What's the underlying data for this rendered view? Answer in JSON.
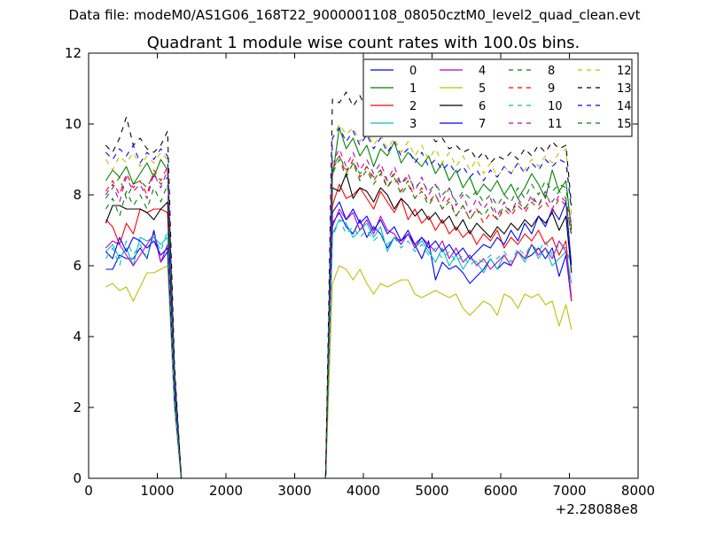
{
  "suptitle": "Data file: modeM0/AS1G06_168T22_9000001108_08050cztM0_level2_quad_clean.evt",
  "chart_data": {
    "type": "line",
    "title": "Quadrant 1 module wise count rates with 100.0s bins.",
    "xlabel": "",
    "ylabel": "",
    "x_offset_label": "+2.28088e8",
    "xlim": [
      0,
      8000
    ],
    "ylim": [
      0,
      12
    ],
    "xticks": [
      0,
      1000,
      2000,
      3000,
      4000,
      5000,
      6000,
      7000,
      8000
    ],
    "yticks": [
      0,
      2,
      4,
      6,
      8,
      10,
      12
    ],
    "grid": false,
    "legend_placement": "top-right",
    "legend_columns": 4,
    "x": [
      250,
      350,
      450,
      550,
      650,
      750,
      850,
      950,
      1050,
      1150,
      1250,
      1350,
      1450,
      1550,
      1650,
      1750,
      1850,
      1950,
      2050,
      2150,
      2250,
      2350,
      2450,
      2550,
      2650,
      2750,
      2850,
      2950,
      3050,
      3150,
      3250,
      3350,
      3450,
      3550,
      3650,
      3750,
      3850,
      3950,
      4050,
      4150,
      4250,
      4350,
      4450,
      4550,
      4650,
      4750,
      4850,
      4950,
      5050,
      5150,
      5250,
      5350,
      5450,
      5550,
      5650,
      5750,
      5850,
      5950,
      6050,
      6150,
      6250,
      6350,
      6450,
      6550,
      6650,
      6750,
      6850,
      6950,
      7030
    ],
    "series": [
      {
        "name": "0",
        "color": "#0000ff",
        "dash": "solid",
        "values": [
          5.9,
          5.9,
          6.3,
          6.2,
          6.2,
          6.5,
          6.2,
          7.0,
          6.1,
          6.4,
          2.0,
          0,
          0,
          0,
          0,
          0,
          0,
          0,
          0,
          0,
          0,
          0,
          0,
          0,
          0,
          0,
          0,
          0,
          0,
          0,
          0,
          0,
          0,
          7.2,
          7.5,
          7.1,
          6.9,
          7.3,
          6.8,
          7.1,
          6.9,
          6.5,
          6.8,
          6.7,
          6.9,
          6.6,
          6.2,
          6.7,
          5.6,
          6.1,
          5.9,
          6.0,
          5.8,
          5.5,
          5.7,
          5.9,
          6.2,
          5.9,
          6.1,
          6.0,
          6.4,
          6.2,
          6.3,
          6.5,
          6.2,
          6.5,
          5.7,
          6.3,
          5.0
        ]
      },
      {
        "name": "1",
        "color": "#008000",
        "dash": "solid",
        "values": [
          8.4,
          8.7,
          8.5,
          8.8,
          8.3,
          8.6,
          8.9,
          8.5,
          9.0,
          8.7,
          3.0,
          0,
          0,
          0,
          0,
          0,
          0,
          0,
          0,
          0,
          0,
          0,
          0,
          0,
          0,
          0,
          0,
          0,
          0,
          0,
          0,
          0,
          0,
          8.5,
          9.9,
          9.3,
          9.6,
          9.1,
          9.4,
          8.8,
          9.3,
          9.1,
          9.5,
          8.9,
          9.2,
          9.0,
          8.8,
          9.1,
          8.6,
          8.9,
          8.4,
          8.7,
          8.2,
          8.5,
          8.0,
          8.3,
          8.1,
          8.4,
          8.0,
          8.3,
          7.9,
          8.2,
          8.6,
          8.3,
          7.9,
          8.7,
          8.1,
          8.4,
          7.0
        ]
      },
      {
        "name": "2",
        "color": "#ff0000",
        "dash": "solid",
        "values": [
          7.3,
          7.1,
          6.6,
          7.2,
          6.9,
          7.6,
          7.5,
          7.6,
          7.6,
          7.5,
          2.5,
          0,
          0,
          0,
          0,
          0,
          0,
          0,
          0,
          0,
          0,
          0,
          0,
          0,
          0,
          0,
          0,
          0,
          0,
          0,
          0,
          0,
          0,
          7.7,
          8.3,
          7.9,
          8.0,
          8.2,
          7.9,
          7.6,
          8.1,
          7.8,
          7.5,
          7.9,
          7.3,
          7.6,
          7.2,
          7.4,
          7.0,
          7.3,
          6.9,
          7.1,
          6.8,
          7.0,
          6.6,
          6.9,
          6.7,
          7.0,
          6.5,
          6.8,
          6.6,
          6.9,
          6.7,
          7.0,
          6.6,
          6.8,
          6.3,
          6.7,
          5.0
        ]
      },
      {
        "name": "3",
        "color": "#00bfbf",
        "dash": "solid",
        "values": [
          6.4,
          6.6,
          6.2,
          6.5,
          6.0,
          6.8,
          6.7,
          6.8,
          6.6,
          6.8,
          2.2,
          0,
          0,
          0,
          0,
          0,
          0,
          0,
          0,
          0,
          0,
          0,
          0,
          0,
          0,
          0,
          0,
          0,
          0,
          0,
          0,
          0,
          0,
          6.9,
          7.3,
          7.2,
          6.8,
          7.0,
          7.2,
          6.8,
          7.1,
          6.4,
          6.8,
          6.6,
          6.9,
          6.5,
          6.7,
          6.4,
          6.1,
          6.5,
          6.0,
          6.3,
          5.9,
          6.2,
          6.1,
          5.8,
          6.2,
          5.9,
          6.3,
          6.0,
          6.4,
          6.1,
          6.6,
          6.2,
          6.5,
          6.0,
          6.2,
          6.4,
          5.5
        ]
      },
      {
        "name": "4",
        "color": "#bf00bf",
        "dash": "solid",
        "values": [
          6.5,
          6.7,
          6.6,
          6.3,
          6.0,
          6.3,
          6.6,
          6.9,
          6.1,
          6.6,
          2.2,
          0,
          0,
          0,
          0,
          0,
          0,
          0,
          0,
          0,
          0,
          0,
          0,
          0,
          0,
          0,
          0,
          0,
          0,
          0,
          0,
          0,
          0,
          7.1,
          7.6,
          7.3,
          7.5,
          7.0,
          7.3,
          6.9,
          7.4,
          7.0,
          6.9,
          6.6,
          6.9,
          6.5,
          6.8,
          6.6,
          6.4,
          6.7,
          6.2,
          6.5,
          6.1,
          6.3,
          6.0,
          6.2,
          5.9,
          6.1,
          6.3,
          6.0,
          6.4,
          6.2,
          6.6,
          6.3,
          6.5,
          6.2,
          6.7,
          6.4,
          5.1
        ]
      },
      {
        "name": "5",
        "color": "#bfbf00",
        "dash": "solid",
        "values": [
          5.4,
          5.5,
          5.3,
          5.4,
          5.0,
          5.4,
          5.8,
          5.8,
          5.9,
          6.0,
          2.0,
          0,
          0,
          0,
          0,
          0,
          0,
          0,
          0,
          0,
          0,
          0,
          0,
          0,
          0,
          0,
          0,
          0,
          0,
          0,
          0,
          0,
          0,
          5.5,
          6.0,
          5.9,
          5.6,
          5.9,
          5.5,
          5.2,
          5.5,
          5.4,
          5.5,
          5.6,
          5.6,
          5.2,
          5.1,
          5.2,
          5.3,
          5.2,
          5.1,
          5.2,
          4.8,
          4.6,
          4.8,
          5.0,
          4.9,
          4.6,
          5.2,
          5.1,
          4.8,
          5.2,
          5.1,
          5.2,
          4.9,
          5.0,
          4.3,
          4.9,
          4.2
        ]
      },
      {
        "name": "6",
        "color": "#000000",
        "dash": "solid",
        "values": [
          7.2,
          7.7,
          7.7,
          7.6,
          7.6,
          7.6,
          7.5,
          7.3,
          7.6,
          7.8,
          2.6,
          0,
          0,
          0,
          0,
          0,
          0,
          0,
          0,
          0,
          0,
          0,
          0,
          0,
          0,
          0,
          0,
          0,
          0,
          0,
          0,
          0,
          0,
          8.2,
          8.1,
          8.6,
          7.9,
          8.2,
          8.1,
          7.8,
          8.2,
          8.0,
          7.6,
          7.9,
          7.7,
          7.4,
          7.6,
          7.3,
          7.5,
          7.2,
          7.4,
          7.0,
          7.3,
          6.9,
          7.2,
          7.0,
          6.8,
          7.1,
          6.9,
          7.2,
          7.0,
          7.3,
          7.1,
          7.4,
          7.2,
          7.5,
          7.0,
          7.4,
          5.8
        ]
      },
      {
        "name": "7",
        "color": "#0000ff",
        "dash": "solid",
        "values": [
          6.4,
          6.2,
          6.8,
          6.4,
          6.8,
          6.7,
          6.5,
          6.7,
          6.3,
          6.5,
          2.2,
          0,
          0,
          0,
          0,
          0,
          0,
          0,
          0,
          0,
          0,
          0,
          0,
          0,
          0,
          0,
          0,
          0,
          0,
          0,
          0,
          0,
          0,
          7.5,
          7.8,
          7.3,
          7.6,
          7.2,
          7.4,
          7.0,
          7.3,
          6.9,
          7.1,
          6.7,
          7.0,
          6.6,
          6.8,
          6.5,
          6.7,
          6.4,
          6.6,
          6.3,
          6.5,
          6.2,
          6.4,
          6.6,
          6.5,
          6.8,
          6.6,
          7.0,
          6.7,
          7.2,
          6.9,
          7.4,
          7.1,
          7.6,
          7.3,
          7.8,
          6.0
        ]
      },
      {
        "name": "8",
        "color": "#008000",
        "dash": "dashed",
        "values": [
          7.9,
          8.2,
          8.5,
          7.9,
          8.3,
          8.4,
          8.2,
          8.6,
          8.3,
          8.5,
          2.8,
          0,
          0,
          0,
          0,
          0,
          0,
          0,
          0,
          0,
          0,
          0,
          0,
          0,
          0,
          0,
          0,
          0,
          0,
          0,
          0,
          0,
          0,
          8.8,
          9.1,
          8.7,
          8.9,
          8.6,
          8.8,
          8.5,
          8.7,
          8.4,
          8.6,
          8.3,
          8.5,
          8.2,
          8.4,
          8.1,
          8.3,
          8.0,
          8.2,
          7.8,
          8.1,
          7.9,
          8.1,
          7.8,
          8.0,
          7.7,
          8.0,
          7.8,
          8.2,
          7.9,
          8.3,
          8.0,
          8.4,
          8.1,
          8.3,
          8.2,
          7.1
        ]
      },
      {
        "name": "9",
        "color": "#ff0000",
        "dash": "dashed",
        "values": [
          8.1,
          8.4,
          8.0,
          8.6,
          8.2,
          8.4,
          8.0,
          8.7,
          8.4,
          8.8,
          2.9,
          0,
          0,
          0,
          0,
          0,
          0,
          0,
          0,
          0,
          0,
          0,
          0,
          0,
          0,
          0,
          0,
          0,
          0,
          0,
          0,
          0,
          0,
          8.7,
          9.1,
          8.6,
          9.0,
          8.5,
          8.8,
          8.4,
          8.7,
          8.2,
          8.6,
          8.1,
          8.4,
          7.9,
          8.2,
          7.8,
          8.0,
          7.6,
          7.9,
          7.4,
          7.7,
          7.3,
          7.6,
          7.2,
          7.5,
          7.3,
          7.6,
          7.4,
          7.7,
          7.5,
          7.8,
          7.6,
          7.8,
          7.5,
          7.9,
          7.7,
          6.9
        ]
      },
      {
        "name": "10",
        "color": "#00bfbf",
        "dash": "dashed",
        "values": [
          6.2,
          6.5,
          6.0,
          6.7,
          6.3,
          6.6,
          6.2,
          6.9,
          6.4,
          7.0,
          2.2,
          0,
          0,
          0,
          0,
          0,
          0,
          0,
          0,
          0,
          0,
          0,
          0,
          0,
          0,
          0,
          0,
          0,
          0,
          0,
          0,
          0,
          0,
          6.8,
          7.3,
          6.9,
          7.1,
          6.8,
          7.0,
          6.7,
          6.9,
          6.6,
          6.8,
          6.5,
          6.7,
          6.4,
          6.6,
          6.3,
          6.5,
          6.2,
          6.4,
          6.1,
          6.3,
          6.0,
          6.2,
          6.1,
          6.3,
          6.2,
          6.4,
          6.1,
          6.5,
          6.3,
          6.6,
          6.4,
          6.7,
          6.3,
          6.6,
          6.5,
          6.0
        ]
      },
      {
        "name": "11",
        "color": "#bf00bf",
        "dash": "dashed",
        "values": [
          8.0,
          8.3,
          7.8,
          8.5,
          8.1,
          8.3,
          7.9,
          8.6,
          8.2,
          8.7,
          2.8,
          0,
          0,
          0,
          0,
          0,
          0,
          0,
          0,
          0,
          0,
          0,
          0,
          0,
          0,
          0,
          0,
          0,
          0,
          0,
          0,
          0,
          0,
          8.9,
          9.3,
          8.8,
          9.2,
          8.7,
          9.0,
          8.6,
          8.9,
          8.4,
          8.8,
          8.3,
          8.6,
          8.1,
          8.5,
          8.0,
          8.3,
          7.8,
          8.2,
          7.7,
          8.0,
          7.5,
          7.9,
          7.6,
          7.9,
          7.4,
          7.8,
          7.5,
          7.9,
          7.6,
          8.0,
          7.7,
          8.1,
          7.6,
          8.0,
          7.8,
          7.2
        ]
      },
      {
        "name": "12",
        "color": "#bfbf00",
        "dash": "dashed",
        "values": [
          9.0,
          8.7,
          9.1,
          8.9,
          9.2,
          8.8,
          9.1,
          8.9,
          9.2,
          9.0,
          3.0,
          0,
          0,
          0,
          0,
          0,
          0,
          0,
          0,
          0,
          0,
          0,
          0,
          0,
          0,
          0,
          0,
          0,
          0,
          0,
          0,
          0,
          0,
          9.6,
          10.0,
          9.7,
          9.9,
          9.5,
          9.8,
          9.4,
          9.7,
          9.3,
          9.6,
          9.2,
          9.5,
          9.1,
          9.4,
          9.0,
          9.3,
          8.9,
          9.2,
          8.8,
          9.1,
          8.7,
          9.0,
          8.6,
          8.9,
          8.5,
          8.8,
          8.6,
          8.9,
          8.7,
          9.0,
          8.8,
          9.1,
          8.9,
          9.2,
          9.3,
          7.4
        ]
      },
      {
        "name": "13",
        "color": "#000000",
        "dash": "dashed",
        "values": [
          9.4,
          9.2,
          9.6,
          10.2,
          9.4,
          9.6,
          9.3,
          9.2,
          9.4,
          9.8,
          3.2,
          0,
          0,
          0,
          0,
          0,
          0,
          0,
          0,
          0,
          0,
          0,
          0,
          0,
          0,
          0,
          0,
          0,
          0,
          0,
          0,
          0,
          0,
          10.7,
          10.6,
          10.9,
          10.5,
          10.8,
          10.4,
          10.6,
          10.3,
          10.4,
          10.1,
          10.2,
          9.9,
          10.0,
          9.7,
          9.8,
          9.5,
          9.6,
          9.3,
          9.4,
          9.2,
          9.3,
          9.0,
          9.2,
          8.9,
          9.1,
          9.0,
          9.2,
          9.0,
          9.3,
          9.1,
          9.4,
          9.2,
          9.5,
          9.3,
          9.4,
          7.7
        ]
      },
      {
        "name": "14",
        "color": "#0000ff",
        "dash": "dashed",
        "values": [
          9.2,
          9.0,
          9.3,
          9.1,
          9.4,
          8.9,
          9.2,
          9.0,
          9.3,
          9.1,
          3.0,
          0,
          0,
          0,
          0,
          0,
          0,
          0,
          0,
          0,
          0,
          0,
          0,
          0,
          0,
          0,
          0,
          0,
          0,
          0,
          0,
          0,
          0,
          9.6,
          9.9,
          9.5,
          9.8,
          9.4,
          9.7,
          9.3,
          9.6,
          9.2,
          9.5,
          9.1,
          9.3,
          8.9,
          9.2,
          8.8,
          9.0,
          8.7,
          8.9,
          8.6,
          8.8,
          8.5,
          8.7,
          8.4,
          8.7,
          8.5,
          8.8,
          8.6,
          8.9,
          8.6,
          8.9,
          8.7,
          9.0,
          8.8,
          9.0,
          8.9,
          7.6
        ]
      },
      {
        "name": "15",
        "color": "#008000",
        "dash": "dashed",
        "values": [
          7.6,
          7.9,
          7.4,
          8.1,
          7.7,
          8.0,
          7.6,
          8.2,
          7.8,
          8.3,
          2.6,
          0,
          0,
          0,
          0,
          0,
          0,
          0,
          0,
          0,
          0,
          0,
          0,
          0,
          0,
          0,
          0,
          0,
          0,
          0,
          0,
          0,
          0,
          8.6,
          9.0,
          8.5,
          8.9,
          8.4,
          8.7,
          8.3,
          8.6,
          8.2,
          8.5,
          8.0,
          8.3,
          7.9,
          8.1,
          7.7,
          8.0,
          7.6,
          7.8,
          7.4,
          7.7,
          7.3,
          7.6,
          7.4,
          7.7,
          7.3,
          7.7,
          7.5,
          7.8,
          7.6,
          7.9,
          7.7,
          8.0,
          7.8,
          8.1,
          7.9,
          6.8
        ]
      }
    ]
  }
}
